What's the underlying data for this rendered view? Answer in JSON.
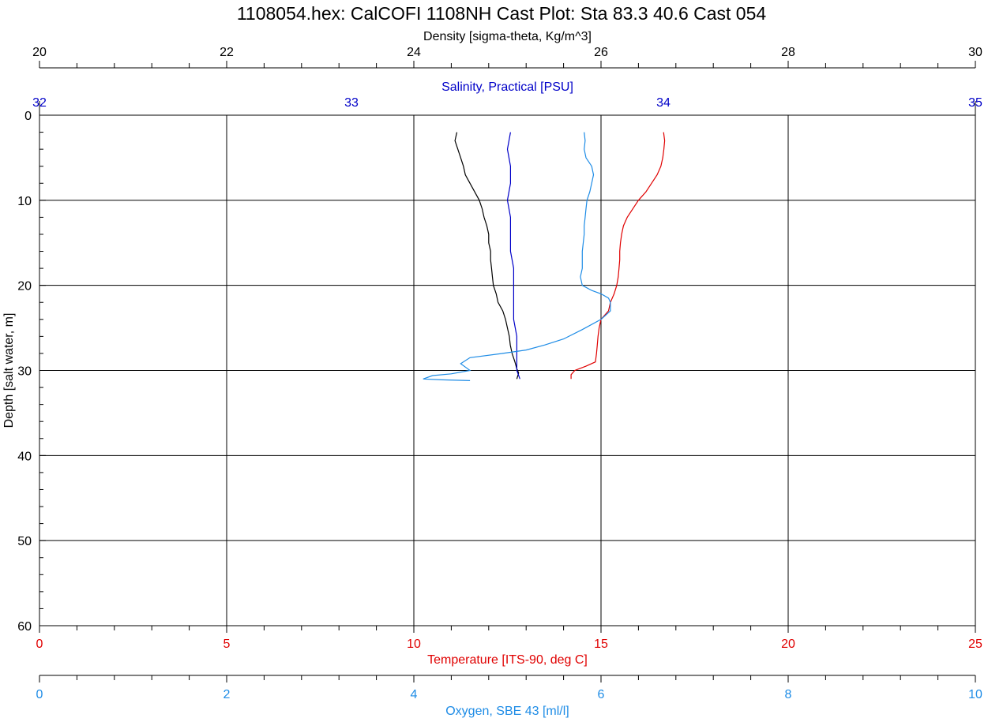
{
  "chart_data": {
    "type": "line",
    "title": "1108054.hex: CalCOFI 1108NH Cast Plot:  Sta 83.3  40.6  Cast 054",
    "grid": true,
    "y_axis": {
      "label": "Depth [salt water, m]",
      "range": [
        0,
        60
      ],
      "inverted": true,
      "ticks": [
        "0",
        "10",
        "20",
        "30",
        "40",
        "50",
        "60"
      ]
    },
    "x_axes": [
      {
        "id": "density",
        "label": "Density [sigma-theta, Kg/m^3]",
        "position": "top",
        "color": "#000000",
        "range": [
          20,
          30
        ],
        "ticks": [
          "20",
          "22",
          "24",
          "26",
          "28",
          "30"
        ]
      },
      {
        "id": "salinity",
        "label": "Salinity, Practical [PSU]",
        "position": "top-inner",
        "color": "#0000c8",
        "range": [
          32,
          35
        ],
        "ticks": [
          "32",
          "33",
          "34",
          "35"
        ]
      },
      {
        "id": "temperature",
        "label": "Temperature [ITS-90, deg C]",
        "position": "bottom",
        "color": "#e00000",
        "range": [
          0,
          25
        ],
        "ticks": [
          "0",
          "5",
          "10",
          "15",
          "20",
          "25"
        ]
      },
      {
        "id": "oxygen",
        "label": "Oxygen, SBE 43 [ml/l]",
        "position": "bottom-outer",
        "color": "#1e8ce6",
        "range": [
          0,
          10
        ],
        "ticks": [
          "0",
          "2",
          "4",
          "6",
          "8",
          "10"
        ]
      }
    ],
    "series": [
      {
        "axis": "density",
        "color": "#000000",
        "points": [
          [
            24.46,
            2
          ],
          [
            24.44,
            3
          ],
          [
            24.47,
            4
          ],
          [
            24.5,
            5
          ],
          [
            24.53,
            6
          ],
          [
            24.55,
            7
          ],
          [
            24.6,
            8
          ],
          [
            24.65,
            9
          ],
          [
            24.7,
            10
          ],
          [
            24.73,
            11
          ],
          [
            24.75,
            12
          ],
          [
            24.78,
            13
          ],
          [
            24.8,
            14
          ],
          [
            24.8,
            15
          ],
          [
            24.82,
            16
          ],
          [
            24.82,
            17
          ],
          [
            24.83,
            18
          ],
          [
            24.84,
            19
          ],
          [
            24.85,
            20
          ],
          [
            24.88,
            21
          ],
          [
            24.9,
            22
          ],
          [
            24.95,
            23
          ],
          [
            24.98,
            24
          ],
          [
            25.0,
            25
          ],
          [
            25.02,
            26
          ],
          [
            25.03,
            27
          ],
          [
            25.05,
            28
          ],
          [
            25.08,
            29
          ],
          [
            25.1,
            29.8
          ],
          [
            25.12,
            30.3
          ],
          [
            25.1,
            31
          ]
        ]
      },
      {
        "axis": "salinity",
        "color": "#0000c8",
        "points": [
          [
            33.51,
            2
          ],
          [
            33.5,
            4
          ],
          [
            33.51,
            6
          ],
          [
            33.51,
            8
          ],
          [
            33.5,
            10
          ],
          [
            33.51,
            12
          ],
          [
            33.51,
            14
          ],
          [
            33.51,
            16
          ],
          [
            33.52,
            18
          ],
          [
            33.52,
            20
          ],
          [
            33.52,
            22
          ],
          [
            33.52,
            24
          ],
          [
            33.53,
            26
          ],
          [
            33.53,
            28
          ],
          [
            33.53,
            30
          ],
          [
            33.54,
            31
          ]
        ]
      },
      {
        "axis": "temperature",
        "color": "#e00000",
        "points": [
          [
            16.67,
            2
          ],
          [
            16.7,
            3
          ],
          [
            16.68,
            4
          ],
          [
            16.65,
            5
          ],
          [
            16.6,
            6
          ],
          [
            16.5,
            7
          ],
          [
            16.35,
            8
          ],
          [
            16.2,
            9
          ],
          [
            16.0,
            10
          ],
          [
            15.85,
            11
          ],
          [
            15.7,
            12
          ],
          [
            15.6,
            13
          ],
          [
            15.55,
            14
          ],
          [
            15.52,
            15
          ],
          [
            15.5,
            16
          ],
          [
            15.5,
            17
          ],
          [
            15.48,
            18
          ],
          [
            15.46,
            19
          ],
          [
            15.42,
            20
          ],
          [
            15.35,
            21
          ],
          [
            15.25,
            22
          ],
          [
            15.2,
            23
          ],
          [
            15.0,
            24
          ],
          [
            14.95,
            25
          ],
          [
            14.92,
            26
          ],
          [
            14.9,
            27
          ],
          [
            14.88,
            28
          ],
          [
            14.85,
            29
          ],
          [
            14.6,
            29.5
          ],
          [
            14.3,
            30
          ],
          [
            14.2,
            30.5
          ],
          [
            14.2,
            31
          ]
        ]
      },
      {
        "axis": "oxygen",
        "color": "#1e8ce6",
        "points": [
          [
            5.82,
            2
          ],
          [
            5.83,
            3
          ],
          [
            5.82,
            4
          ],
          [
            5.84,
            5
          ],
          [
            5.9,
            6
          ],
          [
            5.92,
            7
          ],
          [
            5.9,
            8
          ],
          [
            5.88,
            9
          ],
          [
            5.85,
            10
          ],
          [
            5.84,
            11
          ],
          [
            5.83,
            12
          ],
          [
            5.82,
            13
          ],
          [
            5.82,
            14
          ],
          [
            5.81,
            15
          ],
          [
            5.8,
            16
          ],
          [
            5.8,
            17
          ],
          [
            5.8,
            18
          ],
          [
            5.78,
            19
          ],
          [
            5.8,
            20
          ],
          [
            5.9,
            20.6
          ],
          [
            6.0,
            21
          ],
          [
            6.08,
            21.5
          ],
          [
            6.1,
            22
          ],
          [
            6.1,
            23
          ],
          [
            6.0,
            24
          ],
          [
            5.8,
            25.2
          ],
          [
            5.6,
            26.3
          ],
          [
            5.4,
            27
          ],
          [
            5.2,
            27.6
          ],
          [
            4.95,
            28
          ],
          [
            4.6,
            28.5
          ],
          [
            4.5,
            29.2
          ],
          [
            4.55,
            29.6
          ],
          [
            4.6,
            30
          ],
          [
            4.4,
            30.4
          ],
          [
            4.2,
            30.6
          ],
          [
            4.1,
            31
          ],
          [
            4.3,
            31.1
          ],
          [
            4.6,
            31.2
          ]
        ]
      }
    ]
  }
}
